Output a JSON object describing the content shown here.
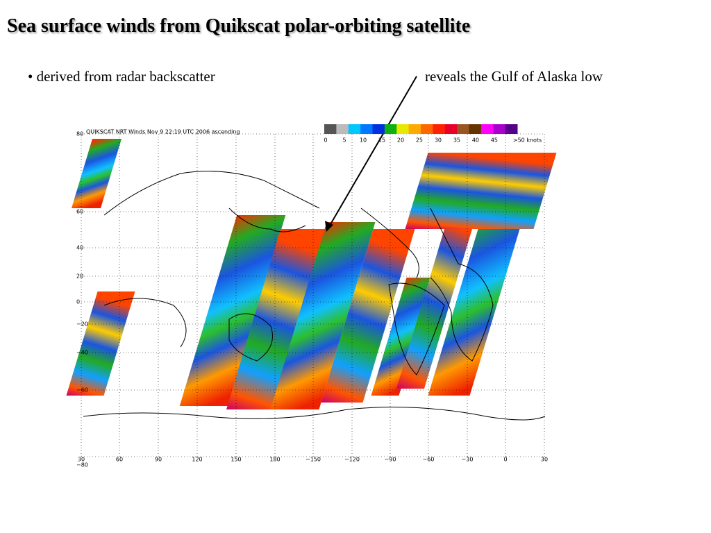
{
  "title": "Sea surface winds from Quikscat polar-orbiting satellite",
  "bullets": [
    "derived from radar backscatter"
  ],
  "annotation": "reveals the Gulf of Alaska low",
  "map": {
    "header": "QUIKSCAT NRT Winds Nov  9 22:19 UTC 2006 ascending",
    "colorbar_labels": [
      "0",
      "5",
      "10",
      "15",
      "20",
      "25",
      "30",
      "35",
      "40",
      "45",
      ">50 knots"
    ],
    "lat_labels": [
      "80",
      "60",
      "40",
      "20",
      "0",
      "−20",
      "−40",
      "−60",
      "−80"
    ],
    "lon_labels": [
      "30",
      "60",
      "90",
      "120",
      "150",
      "180",
      "−150",
      "−120",
      "−90",
      "−60",
      "−30",
      "0",
      "30"
    ]
  }
}
